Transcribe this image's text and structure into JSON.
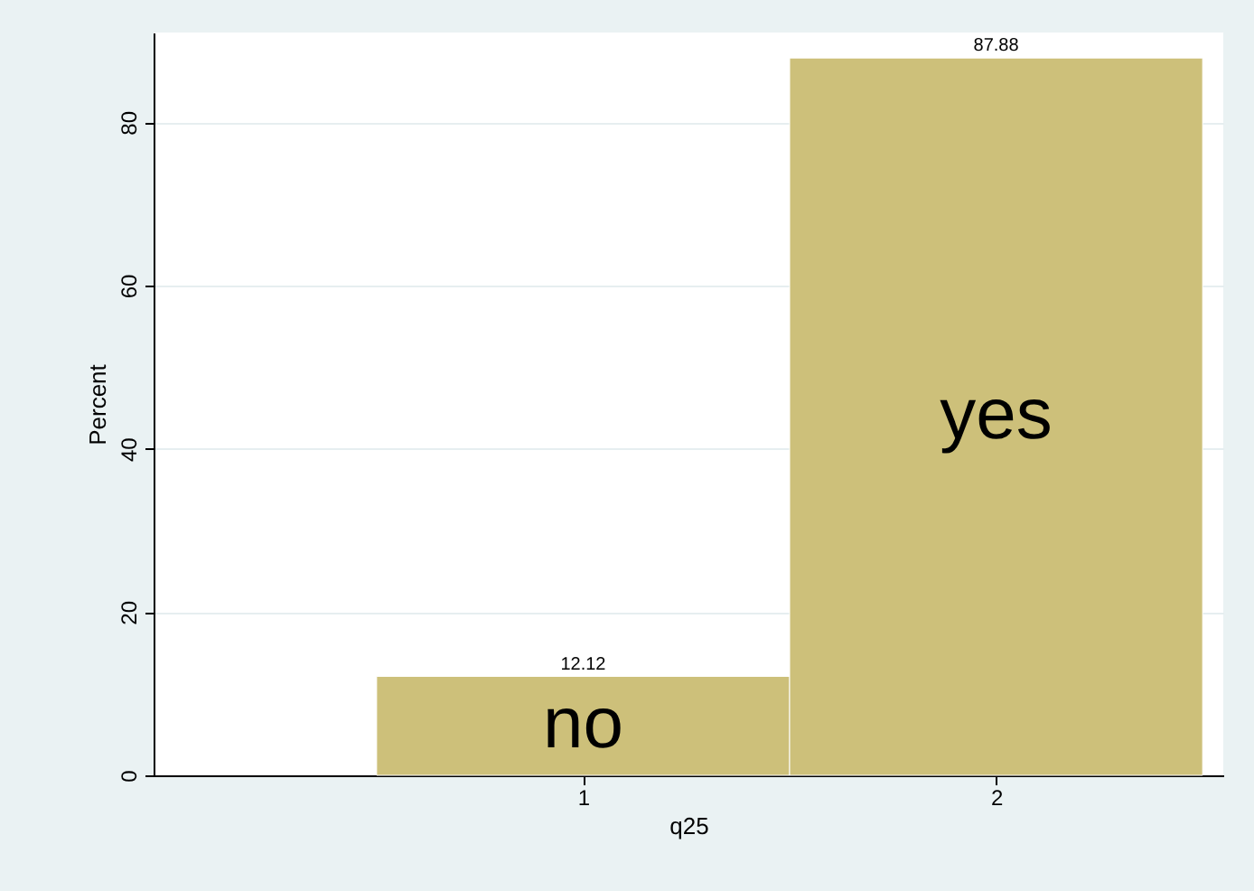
{
  "chart_data": {
    "type": "histogram",
    "xlabel": "q25",
    "ylabel": "Percent",
    "bins": [
      0.5,
      1.5,
      2.5
    ],
    "values": [
      12.12,
      87.88
    ],
    "color": "#cdc07a",
    "data_labels": true,
    "xlim": [
      -0.04,
      2.55
    ],
    "xticks": [
      1,
      2
    ],
    "ylim": [
      0,
      91
    ],
    "yticks": [
      0,
      20,
      40,
      60,
      80
    ],
    "grid": "y",
    "annotations": [
      "no",
      "yes"
    ]
  }
}
